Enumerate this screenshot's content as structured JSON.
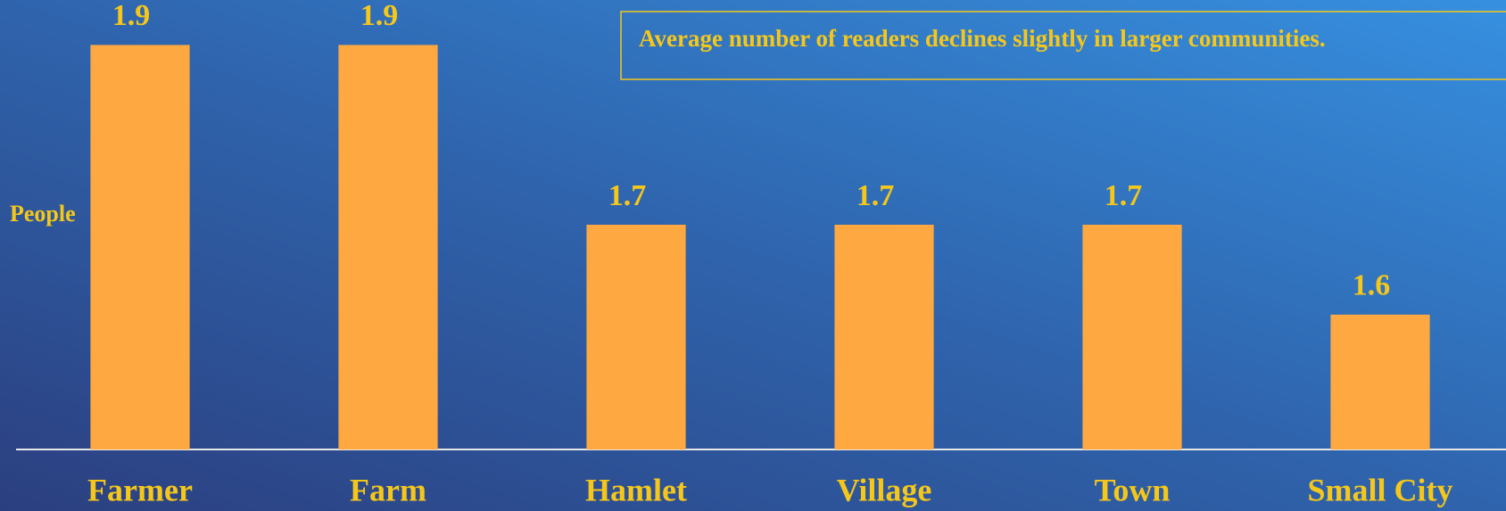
{
  "chart_data": {
    "type": "bar",
    "y_label": "People",
    "annotation": "Average number of readers declines slightly in larger communities.",
    "categories": [
      "Farmer",
      "Farm",
      "Hamlet",
      "Village",
      "Town",
      "Small City"
    ],
    "values": [
      1.9,
      1.9,
      1.7,
      1.7,
      1.7,
      1.6
    ],
    "color": "#fda840",
    "ylim": [
      1.45,
      1.95
    ]
  }
}
